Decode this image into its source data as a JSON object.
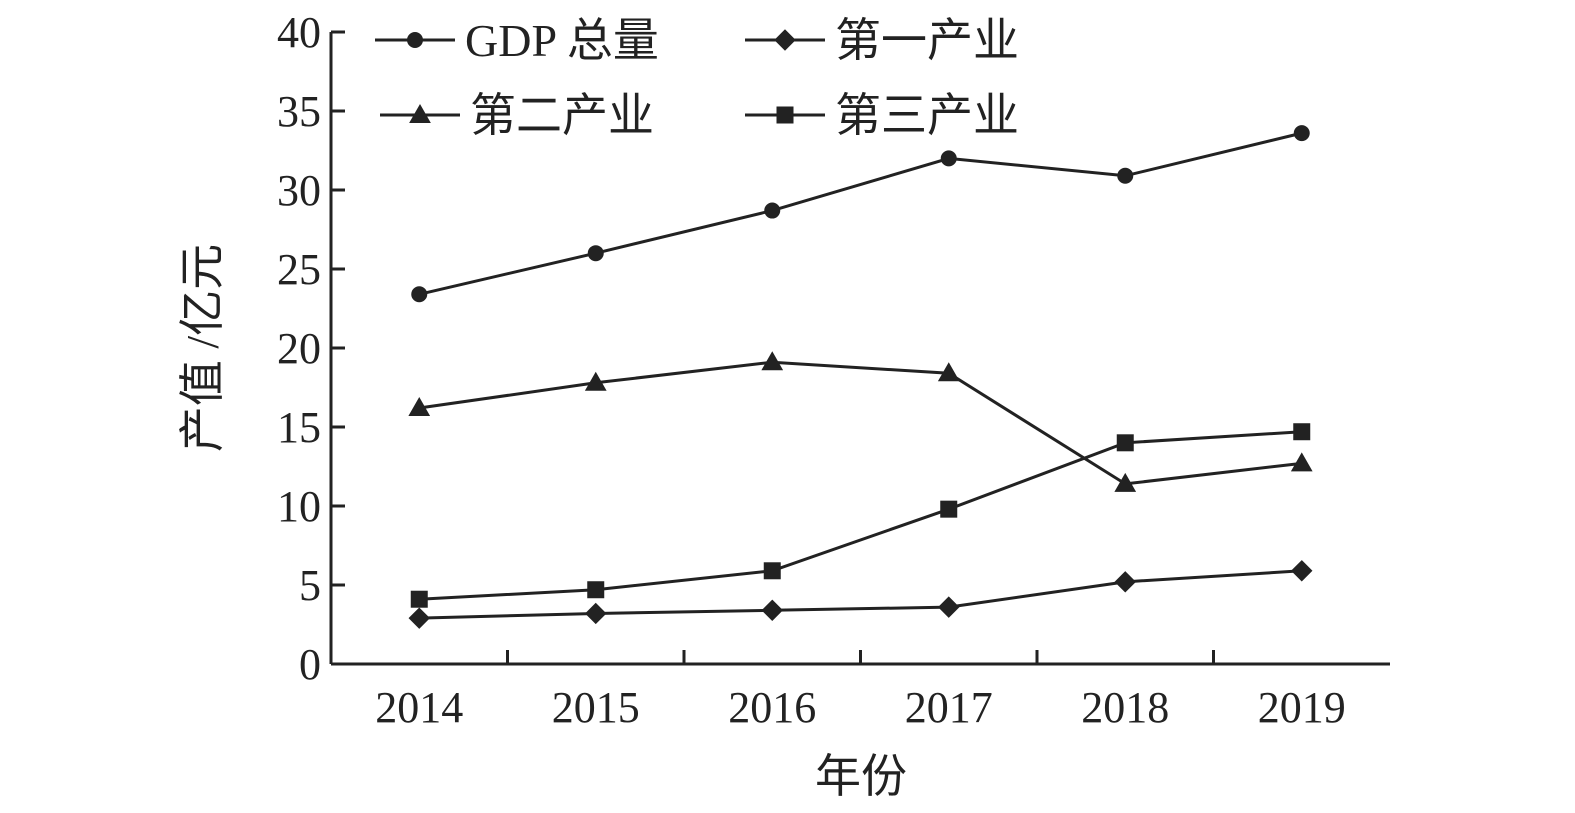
{
  "chart_data": {
    "type": "line",
    "title": "",
    "xlabel": "年份",
    "ylabel": "产值 /亿元",
    "categories": [
      "2014",
      "2015",
      "2016",
      "2017",
      "2018",
      "2019"
    ],
    "ylim": [
      0,
      40
    ],
    "yticks": [
      0,
      5,
      10,
      15,
      20,
      25,
      30,
      35,
      40
    ],
    "grid": false,
    "legend_position": "top",
    "series": [
      {
        "name": "GDP 总量",
        "marker": "circle",
        "values": [
          23.4,
          26.0,
          28.7,
          32.0,
          30.9,
          33.6
        ]
      },
      {
        "name": "第一产业",
        "marker": "diamond",
        "values": [
          2.9,
          3.2,
          3.4,
          3.6,
          5.2,
          5.9
        ]
      },
      {
        "name": "第二产业",
        "marker": "triangle",
        "values": [
          16.2,
          17.8,
          19.1,
          18.4,
          11.4,
          12.7
        ]
      },
      {
        "name": "第三产业",
        "marker": "square",
        "values": [
          4.1,
          4.7,
          5.9,
          9.8,
          14.0,
          14.7
        ]
      }
    ],
    "colors": {
      "line": "#222222"
    }
  }
}
